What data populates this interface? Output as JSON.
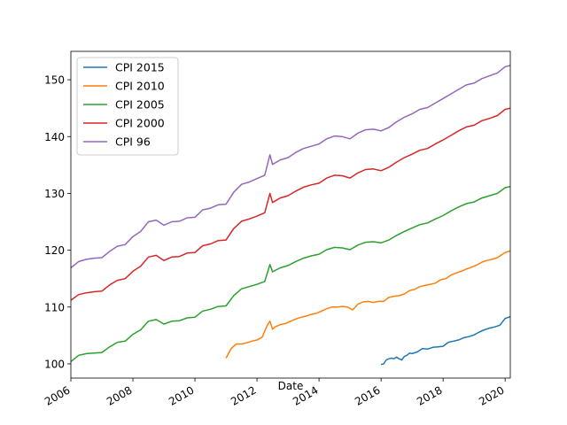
{
  "chart_data": {
    "type": "line",
    "title": "",
    "xlabel": "Date",
    "ylabel": "",
    "xlim": [
      "2006-01",
      "2020-03"
    ],
    "ylim": [
      97.5,
      155
    ],
    "x_ticks": [
      "2006",
      "2008",
      "2010",
      "2012",
      "2014",
      "2016",
      "2018",
      "2020"
    ],
    "y_ticks": [
      100,
      110,
      120,
      130,
      140,
      150
    ],
    "grid": false,
    "legend": "upper-left",
    "series": [
      {
        "name": "CPI 2015",
        "color": "#1f77b4",
        "points": [
          [
            "2016-01",
            99.9
          ],
          [
            "2016-02",
            100.0
          ],
          [
            "2016-03",
            100.7
          ],
          [
            "2016-04",
            100.9
          ],
          [
            "2016-05",
            101.0
          ],
          [
            "2016-06",
            100.9
          ],
          [
            "2016-07",
            101.2
          ],
          [
            "2016-08",
            100.9
          ],
          [
            "2016-09",
            100.7
          ],
          [
            "2016-10",
            101.3
          ],
          [
            "2016-11",
            101.5
          ],
          [
            "2016-12",
            101.9
          ],
          [
            "2017-01",
            101.8
          ],
          [
            "2017-03",
            102.1
          ],
          [
            "2017-05",
            102.7
          ],
          [
            "2017-07",
            102.6
          ],
          [
            "2017-09",
            102.9
          ],
          [
            "2017-11",
            103.0
          ],
          [
            "2018-01",
            103.1
          ],
          [
            "2018-03",
            103.8
          ],
          [
            "2018-05",
            104.0
          ],
          [
            "2018-07",
            104.2
          ],
          [
            "2018-09",
            104.6
          ],
          [
            "2018-11",
            104.8
          ],
          [
            "2019-01",
            105.1
          ],
          [
            "2019-03",
            105.6
          ],
          [
            "2019-05",
            106.0
          ],
          [
            "2019-07",
            106.3
          ],
          [
            "2019-09",
            106.5
          ],
          [
            "2019-11",
            106.8
          ],
          [
            "2020-01",
            108.0
          ],
          [
            "2020-03",
            108.3
          ]
        ]
      },
      {
        "name": "CPI 2010",
        "color": "#ff7f0e",
        "points": [
          [
            "2011-01",
            101.0
          ],
          [
            "2011-03",
            102.7
          ],
          [
            "2011-05",
            103.5
          ],
          [
            "2011-07",
            103.5
          ],
          [
            "2011-09",
            103.7
          ],
          [
            "2011-11",
            104.0
          ],
          [
            "2012-01",
            104.2
          ],
          [
            "2012-03",
            104.7
          ],
          [
            "2012-05",
            106.8
          ],
          [
            "2012-06",
            107.5
          ],
          [
            "2012-07",
            106.1
          ],
          [
            "2012-08",
            106.5
          ],
          [
            "2012-10",
            106.9
          ],
          [
            "2012-12",
            107.1
          ],
          [
            "2013-02",
            107.5
          ],
          [
            "2013-04",
            107.9
          ],
          [
            "2013-06",
            108.2
          ],
          [
            "2013-08",
            108.4
          ],
          [
            "2013-10",
            108.7
          ],
          [
            "2013-12",
            108.9
          ],
          [
            "2014-02",
            109.3
          ],
          [
            "2014-04",
            109.7
          ],
          [
            "2014-06",
            110.0
          ],
          [
            "2014-08",
            110.0
          ],
          [
            "2014-10",
            110.1
          ],
          [
            "2014-12",
            110.0
          ],
          [
            "2015-02",
            109.5
          ],
          [
            "2015-04",
            110.5
          ],
          [
            "2015-06",
            110.9
          ],
          [
            "2015-08",
            111.0
          ],
          [
            "2015-10",
            110.8
          ],
          [
            "2015-12",
            111.0
          ],
          [
            "2016-02",
            111.0
          ],
          [
            "2016-04",
            111.7
          ],
          [
            "2016-06",
            111.9
          ],
          [
            "2016-08",
            112.0
          ],
          [
            "2016-10",
            112.3
          ],
          [
            "2016-12",
            112.9
          ],
          [
            "2017-02",
            113.1
          ],
          [
            "2017-04",
            113.6
          ],
          [
            "2017-06",
            113.8
          ],
          [
            "2017-08",
            114.0
          ],
          [
            "2017-10",
            114.2
          ],
          [
            "2017-12",
            114.8
          ],
          [
            "2018-02",
            115.0
          ],
          [
            "2018-04",
            115.6
          ],
          [
            "2018-06",
            116.0
          ],
          [
            "2018-08",
            116.3
          ],
          [
            "2018-10",
            116.7
          ],
          [
            "2018-12",
            117.0
          ],
          [
            "2019-02",
            117.4
          ],
          [
            "2019-04",
            117.9
          ],
          [
            "2019-06",
            118.2
          ],
          [
            "2019-08",
            118.4
          ],
          [
            "2019-10",
            118.7
          ],
          [
            "2019-12",
            119.3
          ],
          [
            "2020-01",
            119.6
          ],
          [
            "2020-03",
            119.9
          ]
        ]
      },
      {
        "name": "CPI 2005",
        "color": "#2ca02c",
        "points": [
          [
            "2006-01",
            100.4
          ],
          [
            "2006-04",
            101.5
          ],
          [
            "2006-07",
            101.8
          ],
          [
            "2006-10",
            101.9
          ],
          [
            "2007-01",
            102.0
          ],
          [
            "2007-04",
            103.0
          ],
          [
            "2007-07",
            103.8
          ],
          [
            "2007-10",
            104.0
          ],
          [
            "2008-01",
            105.2
          ],
          [
            "2008-04",
            106.0
          ],
          [
            "2008-07",
            107.5
          ],
          [
            "2008-10",
            107.8
          ],
          [
            "2009-01",
            107.0
          ],
          [
            "2009-04",
            107.5
          ],
          [
            "2009-07",
            107.6
          ],
          [
            "2009-10",
            108.1
          ],
          [
            "2010-01",
            108.2
          ],
          [
            "2010-04",
            109.3
          ],
          [
            "2010-07",
            109.6
          ],
          [
            "2010-10",
            110.1
          ],
          [
            "2011-01",
            110.2
          ],
          [
            "2011-04",
            112.0
          ],
          [
            "2011-07",
            113.2
          ],
          [
            "2011-10",
            113.6
          ],
          [
            "2012-01",
            114.0
          ],
          [
            "2012-04",
            114.5
          ],
          [
            "2012-06",
            117.5
          ],
          [
            "2012-07",
            116.2
          ],
          [
            "2012-10",
            116.9
          ],
          [
            "2013-01",
            117.3
          ],
          [
            "2013-04",
            118.0
          ],
          [
            "2013-07",
            118.6
          ],
          [
            "2013-10",
            119.0
          ],
          [
            "2014-01",
            119.3
          ],
          [
            "2014-04",
            120.1
          ],
          [
            "2014-07",
            120.5
          ],
          [
            "2014-10",
            120.4
          ],
          [
            "2015-01",
            120.1
          ],
          [
            "2015-04",
            120.9
          ],
          [
            "2015-07",
            121.4
          ],
          [
            "2015-10",
            121.5
          ],
          [
            "2016-01",
            121.3
          ],
          [
            "2016-04",
            121.8
          ],
          [
            "2016-07",
            122.6
          ],
          [
            "2016-10",
            123.3
          ],
          [
            "2017-01",
            123.9
          ],
          [
            "2017-04",
            124.5
          ],
          [
            "2017-07",
            124.8
          ],
          [
            "2017-10",
            125.5
          ],
          [
            "2018-01",
            126.1
          ],
          [
            "2018-04",
            126.9
          ],
          [
            "2018-07",
            127.6
          ],
          [
            "2018-10",
            128.2
          ],
          [
            "2019-01",
            128.5
          ],
          [
            "2019-04",
            129.2
          ],
          [
            "2019-07",
            129.6
          ],
          [
            "2019-10",
            130.0
          ],
          [
            "2020-01",
            131.0
          ],
          [
            "2020-03",
            131.2
          ]
        ]
      },
      {
        "name": "CPI 2000",
        "color": "#d62728",
        "points": [
          [
            "2006-01",
            111.2
          ],
          [
            "2006-04",
            112.2
          ],
          [
            "2006-07",
            112.5
          ],
          [
            "2006-10",
            112.7
          ],
          [
            "2007-01",
            112.8
          ],
          [
            "2007-04",
            113.9
          ],
          [
            "2007-07",
            114.7
          ],
          [
            "2007-10",
            115.0
          ],
          [
            "2008-01",
            116.3
          ],
          [
            "2008-04",
            117.2
          ],
          [
            "2008-07",
            118.8
          ],
          [
            "2008-10",
            119.1
          ],
          [
            "2009-01",
            118.2
          ],
          [
            "2009-04",
            118.8
          ],
          [
            "2009-07",
            118.9
          ],
          [
            "2009-10",
            119.5
          ],
          [
            "2010-01",
            119.6
          ],
          [
            "2010-04",
            120.8
          ],
          [
            "2010-07",
            121.1
          ],
          [
            "2010-10",
            121.7
          ],
          [
            "2011-01",
            121.8
          ],
          [
            "2011-04",
            123.8
          ],
          [
            "2011-07",
            125.1
          ],
          [
            "2011-10",
            125.5
          ],
          [
            "2012-01",
            126.0
          ],
          [
            "2012-04",
            126.6
          ],
          [
            "2012-06",
            130.0
          ],
          [
            "2012-07",
            128.4
          ],
          [
            "2012-10",
            129.2
          ],
          [
            "2013-01",
            129.6
          ],
          [
            "2013-04",
            130.4
          ],
          [
            "2013-07",
            131.1
          ],
          [
            "2013-10",
            131.5
          ],
          [
            "2014-01",
            131.8
          ],
          [
            "2014-04",
            132.7
          ],
          [
            "2014-07",
            133.2
          ],
          [
            "2014-10",
            133.1
          ],
          [
            "2015-01",
            132.7
          ],
          [
            "2015-04",
            133.6
          ],
          [
            "2015-07",
            134.2
          ],
          [
            "2015-10",
            134.3
          ],
          [
            "2016-01",
            134.0
          ],
          [
            "2016-04",
            134.6
          ],
          [
            "2016-07",
            135.5
          ],
          [
            "2016-10",
            136.3
          ],
          [
            "2017-01",
            136.9
          ],
          [
            "2017-04",
            137.6
          ],
          [
            "2017-07",
            137.9
          ],
          [
            "2017-10",
            138.7
          ],
          [
            "2018-01",
            139.4
          ],
          [
            "2018-04",
            140.2
          ],
          [
            "2018-07",
            141.0
          ],
          [
            "2018-10",
            141.7
          ],
          [
            "2019-01",
            142.0
          ],
          [
            "2019-04",
            142.8
          ],
          [
            "2019-07",
            143.2
          ],
          [
            "2019-10",
            143.7
          ],
          [
            "2020-01",
            144.8
          ],
          [
            "2020-03",
            145.0
          ]
        ]
      },
      {
        "name": "CPI 96",
        "color": "#9467bd",
        "points": [
          [
            "2006-01",
            116.9
          ],
          [
            "2006-04",
            118.0
          ],
          [
            "2006-07",
            118.4
          ],
          [
            "2006-10",
            118.6
          ],
          [
            "2007-01",
            118.7
          ],
          [
            "2007-04",
            119.8
          ],
          [
            "2007-07",
            120.7
          ],
          [
            "2007-10",
            121.0
          ],
          [
            "2008-01",
            122.4
          ],
          [
            "2008-04",
            123.3
          ],
          [
            "2008-07",
            125.0
          ],
          [
            "2008-10",
            125.3
          ],
          [
            "2009-01",
            124.4
          ],
          [
            "2009-04",
            125.0
          ],
          [
            "2009-07",
            125.1
          ],
          [
            "2009-10",
            125.7
          ],
          [
            "2010-01",
            125.8
          ],
          [
            "2010-04",
            127.1
          ],
          [
            "2010-07",
            127.4
          ],
          [
            "2010-10",
            128.0
          ],
          [
            "2011-01",
            128.1
          ],
          [
            "2011-04",
            130.2
          ],
          [
            "2011-07",
            131.6
          ],
          [
            "2011-10",
            132.0
          ],
          [
            "2012-01",
            132.6
          ],
          [
            "2012-04",
            133.2
          ],
          [
            "2012-06",
            136.8
          ],
          [
            "2012-07",
            135.1
          ],
          [
            "2012-10",
            135.9
          ],
          [
            "2013-01",
            136.3
          ],
          [
            "2013-04",
            137.2
          ],
          [
            "2013-07",
            137.9
          ],
          [
            "2013-10",
            138.3
          ],
          [
            "2014-01",
            138.7
          ],
          [
            "2014-04",
            139.6
          ],
          [
            "2014-07",
            140.1
          ],
          [
            "2014-10",
            140.0
          ],
          [
            "2015-01",
            139.6
          ],
          [
            "2015-04",
            140.6
          ],
          [
            "2015-07",
            141.2
          ],
          [
            "2015-10",
            141.3
          ],
          [
            "2016-01",
            141.0
          ],
          [
            "2016-04",
            141.6
          ],
          [
            "2016-07",
            142.6
          ],
          [
            "2016-10",
            143.4
          ],
          [
            "2017-01",
            144.0
          ],
          [
            "2017-04",
            144.8
          ],
          [
            "2017-07",
            145.1
          ],
          [
            "2017-10",
            145.9
          ],
          [
            "2018-01",
            146.7
          ],
          [
            "2018-04",
            147.5
          ],
          [
            "2018-07",
            148.3
          ],
          [
            "2018-10",
            149.1
          ],
          [
            "2019-01",
            149.4
          ],
          [
            "2019-04",
            150.2
          ],
          [
            "2019-07",
            150.7
          ],
          [
            "2019-10",
            151.2
          ],
          [
            "2020-01",
            152.3
          ],
          [
            "2020-03",
            152.5
          ]
        ]
      }
    ]
  }
}
